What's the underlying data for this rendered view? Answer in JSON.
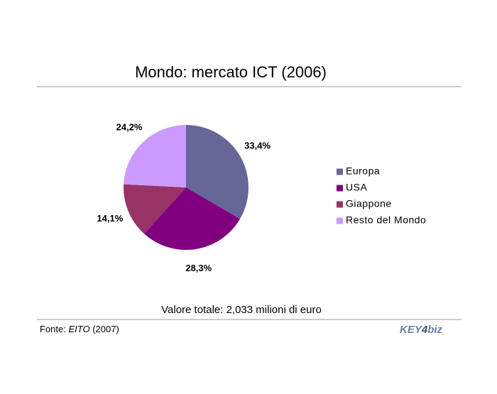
{
  "chart_data": {
    "type": "pie",
    "title": "Mondo: mercato ICT (2006)",
    "categories": [
      "Europa",
      "USA",
      "Giappone",
      "Resto del Mondo"
    ],
    "values": [
      33.4,
      28.3,
      14.1,
      24.2
    ],
    "value_labels": [
      "33,4%",
      "28,3%",
      "14,1%",
      "24,2%"
    ],
    "colors": [
      "#666699",
      "#800080",
      "#993366",
      "#cc99ff"
    ],
    "legend": "right",
    "note": "Valore totale: 2,033 milioni di euro"
  },
  "footer": {
    "source_prefix": "Fonte: ",
    "source_name": "EITO",
    "source_suffix": " (2007)",
    "logo": [
      "KEY",
      "4",
      "biz"
    ]
  }
}
